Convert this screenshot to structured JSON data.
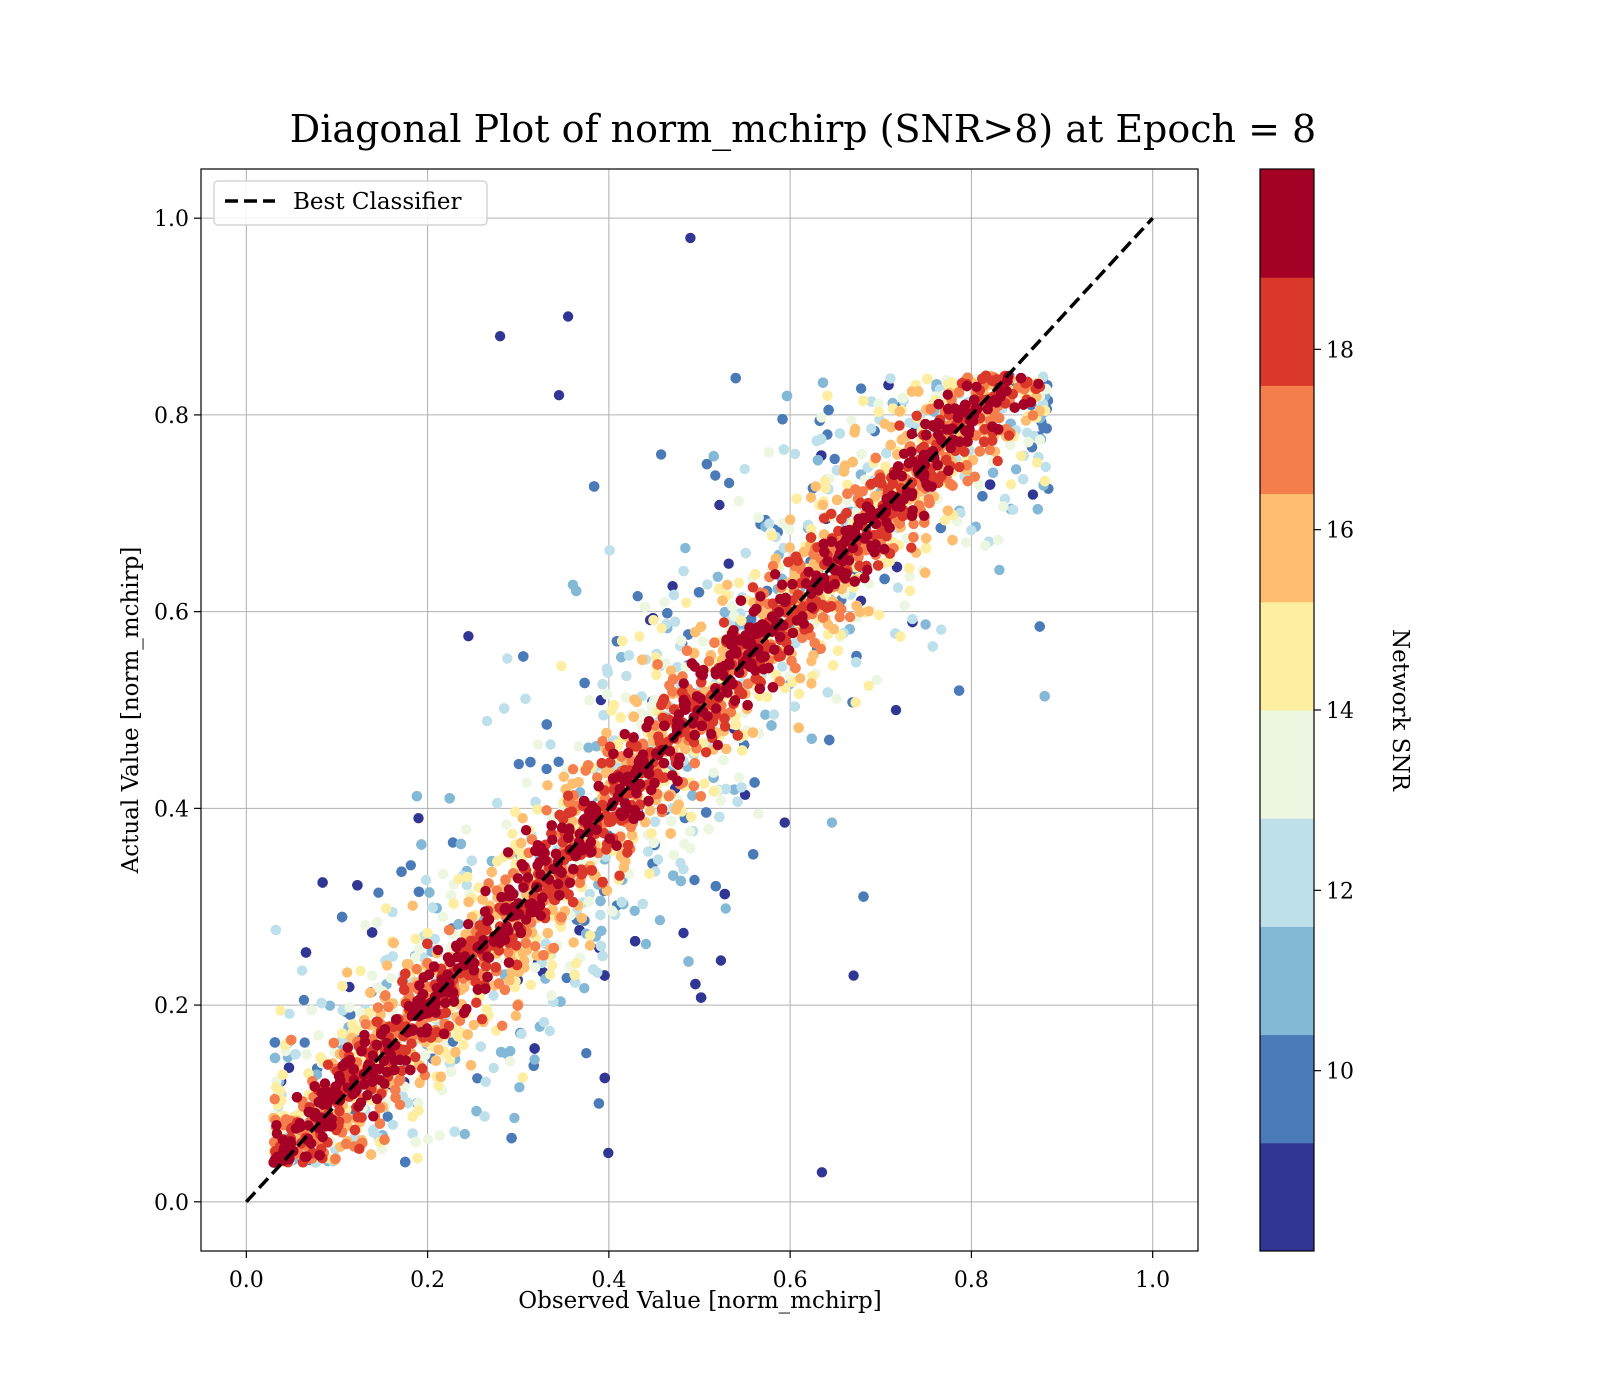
{
  "chart_data": {
    "type": "scatter",
    "title": "Diagonal Plot of norm_mchirp (SNR>8) at Epoch = 8",
    "xlabel": "Observed Value [norm_mchirp]",
    "ylabel": "Actual Value [norm_mchirp]",
    "xlim": [
      -0.05,
      1.05
    ],
    "ylim": [
      -0.05,
      1.05
    ],
    "grid": true,
    "x_ticks": [
      "0.0",
      "0.2",
      "0.4",
      "0.6",
      "0.8",
      "1.0"
    ],
    "y_ticks": [
      "0.0",
      "0.2",
      "0.4",
      "0.6",
      "0.8",
      "1.0"
    ],
    "legend": {
      "placement": "top-left",
      "entries": [
        {
          "label": "Best Classifier",
          "style": "black dashed line"
        }
      ]
    },
    "reference_line": {
      "name": "Best Classifier",
      "x": [
        0.0,
        1.0
      ],
      "y": [
        0.0,
        1.0
      ],
      "color": "#000000",
      "dash": "dashed"
    },
    "colorbar": {
      "label": "Network SNR",
      "colormap": "RdYlBu_r (discrete, 10 levels)",
      "range": [
        8,
        20
      ],
      "ticks": [
        "10",
        "12",
        "14",
        "16",
        "18"
      ],
      "bins": [
        {
          "from": 8.0,
          "to": 9.2,
          "color": "#313695"
        },
        {
          "from": 9.2,
          "to": 10.4,
          "color": "#4a7ab7"
        },
        {
          "from": 10.4,
          "to": 11.6,
          "color": "#83b8d7"
        },
        {
          "from": 11.6,
          "to": 12.8,
          "color": "#bde0ea"
        },
        {
          "from": 12.8,
          "to": 14.0,
          "color": "#ecf6e0"
        },
        {
          "from": 14.0,
          "to": 15.2,
          "color": "#fdeea2"
        },
        {
          "from": 15.2,
          "to": 16.4,
          "color": "#fdbe70"
        },
        {
          "from": 16.4,
          "to": 17.6,
          "color": "#f57e4d"
        },
        {
          "from": 17.6,
          "to": 18.8,
          "color": "#da382a"
        },
        {
          "from": 18.8,
          "to": 20.0,
          "color": "#a50026"
        }
      ]
    },
    "series_summary": {
      "description": "Dense scatter of predictions; points concentrated along diagonal; high SNR (dark red) tight near diagonal, low SNR (blue) spread wider",
      "x_range": [
        0.03,
        0.89
      ],
      "y_range": [
        0.0,
        1.0
      ],
      "sample_outliers": [
        {
          "x": 0.28,
          "y": 0.88,
          "snr": 9
        },
        {
          "x": 0.355,
          "y": 0.9,
          "snr": 9
        },
        {
          "x": 0.49,
          "y": 0.98,
          "snr": 9
        },
        {
          "x": 0.635,
          "y": 0.03,
          "snr": 9
        },
        {
          "x": 0.67,
          "y": 0.23,
          "snr": 9
        },
        {
          "x": 0.345,
          "y": 0.82,
          "snr": 9
        },
        {
          "x": 0.245,
          "y": 0.575,
          "snr": 9
        },
        {
          "x": 0.19,
          "y": 0.39,
          "snr": 9
        }
      ]
    }
  }
}
